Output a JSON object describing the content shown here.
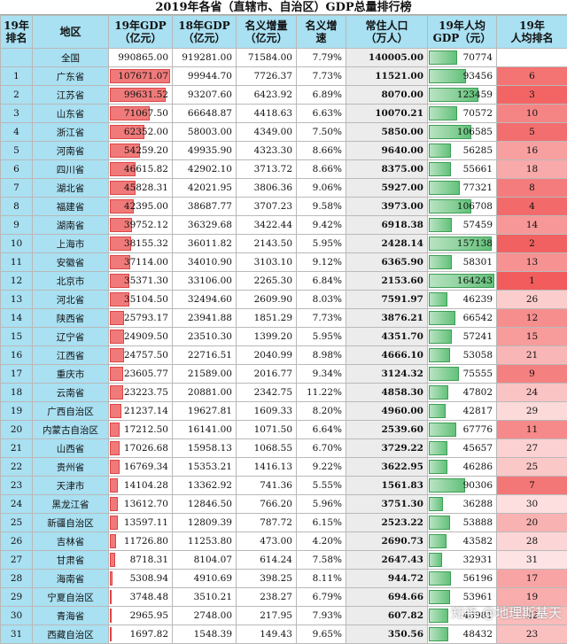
{
  "title": "2019年各省（直辖市、自治区）GDP总量排行榜",
  "columns": [
    "19年\n排名",
    "地区",
    "19年GDP\n（亿元）",
    "18年GDP\n（亿元）",
    "名义增量\n（亿元）",
    "名义增\n速",
    "常住人口\n（万人）",
    "19年人均\nGDP（元）",
    "19年\n人均排名"
  ],
  "national": {
    "rank": "",
    "region": "全国",
    "gdp19": "990865.00",
    "gdp18": "919281.00",
    "inc": "71584.00",
    "rate": "7.79%",
    "pop": "140005.00",
    "percap": "70774",
    "prank": ""
  },
  "rows": [
    {
      "rank": "1",
      "region": "广东省",
      "gdp19": "107671.07",
      "gdp18": "99944.70",
      "inc": "7726.37",
      "rate": "7.73%",
      "pop": "11521.00",
      "percap": "93456",
      "prank": "6"
    },
    {
      "rank": "2",
      "region": "江苏省",
      "gdp19": "99631.52",
      "gdp18": "93207.60",
      "inc": "6423.92",
      "rate": "6.89%",
      "pop": "8070.00",
      "percap": "123459",
      "prank": "3"
    },
    {
      "rank": "3",
      "region": "山东省",
      "gdp19": "71067.50",
      "gdp18": "66648.87",
      "inc": "4418.63",
      "rate": "6.63%",
      "pop": "10070.21",
      "percap": "70572",
      "prank": "10"
    },
    {
      "rank": "4",
      "region": "浙江省",
      "gdp19": "62352.00",
      "gdp18": "58003.00",
      "inc": "4349.00",
      "rate": "7.50%",
      "pop": "5850.00",
      "percap": "106585",
      "prank": "5"
    },
    {
      "rank": "5",
      "region": "河南省",
      "gdp19": "54259.20",
      "gdp18": "49935.90",
      "inc": "4323.30",
      "rate": "8.66%",
      "pop": "9640.00",
      "percap": "56285",
      "prank": "16"
    },
    {
      "rank": "6",
      "region": "四川省",
      "gdp19": "46615.82",
      "gdp18": "42902.10",
      "inc": "3713.72",
      "rate": "8.66%",
      "pop": "8375.00",
      "percap": "55661",
      "prank": "18"
    },
    {
      "rank": "7",
      "region": "湖北省",
      "gdp19": "45828.31",
      "gdp18": "42021.95",
      "inc": "3806.36",
      "rate": "9.06%",
      "pop": "5927.00",
      "percap": "77321",
      "prank": "8"
    },
    {
      "rank": "8",
      "region": "福建省",
      "gdp19": "42395.00",
      "gdp18": "38687.77",
      "inc": "3707.23",
      "rate": "9.58%",
      "pop": "3973.00",
      "percap": "106708",
      "prank": "4"
    },
    {
      "rank": "9",
      "region": "湖南省",
      "gdp19": "39752.12",
      "gdp18": "36329.68",
      "inc": "3422.44",
      "rate": "9.42%",
      "pop": "6918.38",
      "percap": "57459",
      "prank": "14"
    },
    {
      "rank": "10",
      "region": "上海市",
      "gdp19": "38155.32",
      "gdp18": "36011.82",
      "inc": "2143.50",
      "rate": "5.95%",
      "pop": "2428.14",
      "percap": "157138",
      "prank": "2"
    },
    {
      "rank": "11",
      "region": "安徽省",
      "gdp19": "37114.00",
      "gdp18": "34010.90",
      "inc": "3103.10",
      "rate": "9.12%",
      "pop": "6365.90",
      "percap": "58301",
      "prank": "13"
    },
    {
      "rank": "12",
      "region": "北京市",
      "gdp19": "35371.30",
      "gdp18": "33106.00",
      "inc": "2265.30",
      "rate": "6.84%",
      "pop": "2153.60",
      "percap": "164243",
      "prank": "1"
    },
    {
      "rank": "13",
      "region": "河北省",
      "gdp19": "35104.50",
      "gdp18": "32494.60",
      "inc": "2609.90",
      "rate": "8.03%",
      "pop": "7591.97",
      "percap": "46239",
      "prank": "26"
    },
    {
      "rank": "14",
      "region": "陕西省",
      "gdp19": "25793.17",
      "gdp18": "23941.88",
      "inc": "1851.29",
      "rate": "7.73%",
      "pop": "3876.21",
      "percap": "66542",
      "prank": "12"
    },
    {
      "rank": "15",
      "region": "辽宁省",
      "gdp19": "24909.50",
      "gdp18": "23510.30",
      "inc": "1399.20",
      "rate": "5.95%",
      "pop": "4351.70",
      "percap": "57241",
      "prank": "15"
    },
    {
      "rank": "16",
      "region": "江西省",
      "gdp19": "24757.50",
      "gdp18": "22716.51",
      "inc": "2040.99",
      "rate": "8.98%",
      "pop": "4666.10",
      "percap": "53058",
      "prank": "21"
    },
    {
      "rank": "17",
      "region": "重庆市",
      "gdp19": "23605.77",
      "gdp18": "21589.00",
      "inc": "2016.77",
      "rate": "9.34%",
      "pop": "3124.32",
      "percap": "75555",
      "prank": "9"
    },
    {
      "rank": "18",
      "region": "云南省",
      "gdp19": "23223.75",
      "gdp18": "20881.00",
      "inc": "2342.75",
      "rate": "11.22%",
      "pop": "4858.30",
      "percap": "47802",
      "prank": "24"
    },
    {
      "rank": "19",
      "region": "广西自治区",
      "gdp19": "21237.14",
      "gdp18": "19627.81",
      "inc": "1609.33",
      "rate": "8.20%",
      "pop": "4960.00",
      "percap": "42817",
      "prank": "29"
    },
    {
      "rank": "20",
      "region": "内蒙古自治区",
      "gdp19": "17212.50",
      "gdp18": "16141.00",
      "inc": "1071.50",
      "rate": "6.64%",
      "pop": "2539.60",
      "percap": "67776",
      "prank": "11"
    },
    {
      "rank": "21",
      "region": "山西省",
      "gdp19": "17026.68",
      "gdp18": "15958.13",
      "inc": "1068.55",
      "rate": "6.70%",
      "pop": "3729.22",
      "percap": "45657",
      "prank": "27"
    },
    {
      "rank": "22",
      "region": "贵州省",
      "gdp19": "16769.34",
      "gdp18": "15353.21",
      "inc": "1416.13",
      "rate": "9.22%",
      "pop": "3622.95",
      "percap": "46286",
      "prank": "25"
    },
    {
      "rank": "23",
      "region": "天津市",
      "gdp19": "14104.28",
      "gdp18": "13362.92",
      "inc": "741.36",
      "rate": "5.55%",
      "pop": "1561.83",
      "percap": "90306",
      "prank": "7"
    },
    {
      "rank": "24",
      "region": "黑龙江省",
      "gdp19": "13612.70",
      "gdp18": "12846.50",
      "inc": "766.20",
      "rate": "5.96%",
      "pop": "3751.30",
      "percap": "36288",
      "prank": "30"
    },
    {
      "rank": "25",
      "region": "新疆自治区",
      "gdp19": "13597.11",
      "gdp18": "12809.39",
      "inc": "787.72",
      "rate": "6.15%",
      "pop": "2523.22",
      "percap": "53888",
      "prank": "20"
    },
    {
      "rank": "26",
      "region": "吉林省",
      "gdp19": "11726.80",
      "gdp18": "11253.80",
      "inc": "473.00",
      "rate": "4.20%",
      "pop": "2690.73",
      "percap": "43582",
      "prank": "28"
    },
    {
      "rank": "27",
      "region": "甘肃省",
      "gdp19": "8718.31",
      "gdp18": "8104.07",
      "inc": "614.24",
      "rate": "7.58%",
      "pop": "2647.43",
      "percap": "32931",
      "prank": "31"
    },
    {
      "rank": "28",
      "region": "海南省",
      "gdp19": "5308.94",
      "gdp18": "4910.69",
      "inc": "398.25",
      "rate": "8.11%",
      "pop": "944.72",
      "percap": "56196",
      "prank": "17"
    },
    {
      "rank": "29",
      "region": "宁夏自治区",
      "gdp19": "3748.48",
      "gdp18": "3510.21",
      "inc": "238.27",
      "rate": "6.79%",
      "pop": "694.66",
      "percap": "53961",
      "prank": "19"
    },
    {
      "rank": "30",
      "region": "青海省",
      "gdp19": "2965.95",
      "gdp18": "2748.00",
      "inc": "217.95",
      "rate": "7.93%",
      "pop": "607.82",
      "percap": "48981",
      "prank": "22"
    },
    {
      "rank": "31",
      "region": "西藏自治区",
      "gdp19": "1697.82",
      "gdp18": "1548.39",
      "inc": "149.43",
      "rate": "9.65%",
      "pop": "350.56",
      "percap": "48432",
      "prank": "23"
    }
  ],
  "watermark": "知乎 @地理斯基天",
  "colors": {
    "header": "#a9e0f2",
    "gdp_bar": "#f07a7a",
    "percap_bar": "#63c17a",
    "rank_high": "#f25c5c",
    "rank_low": "#fde3e3"
  }
}
